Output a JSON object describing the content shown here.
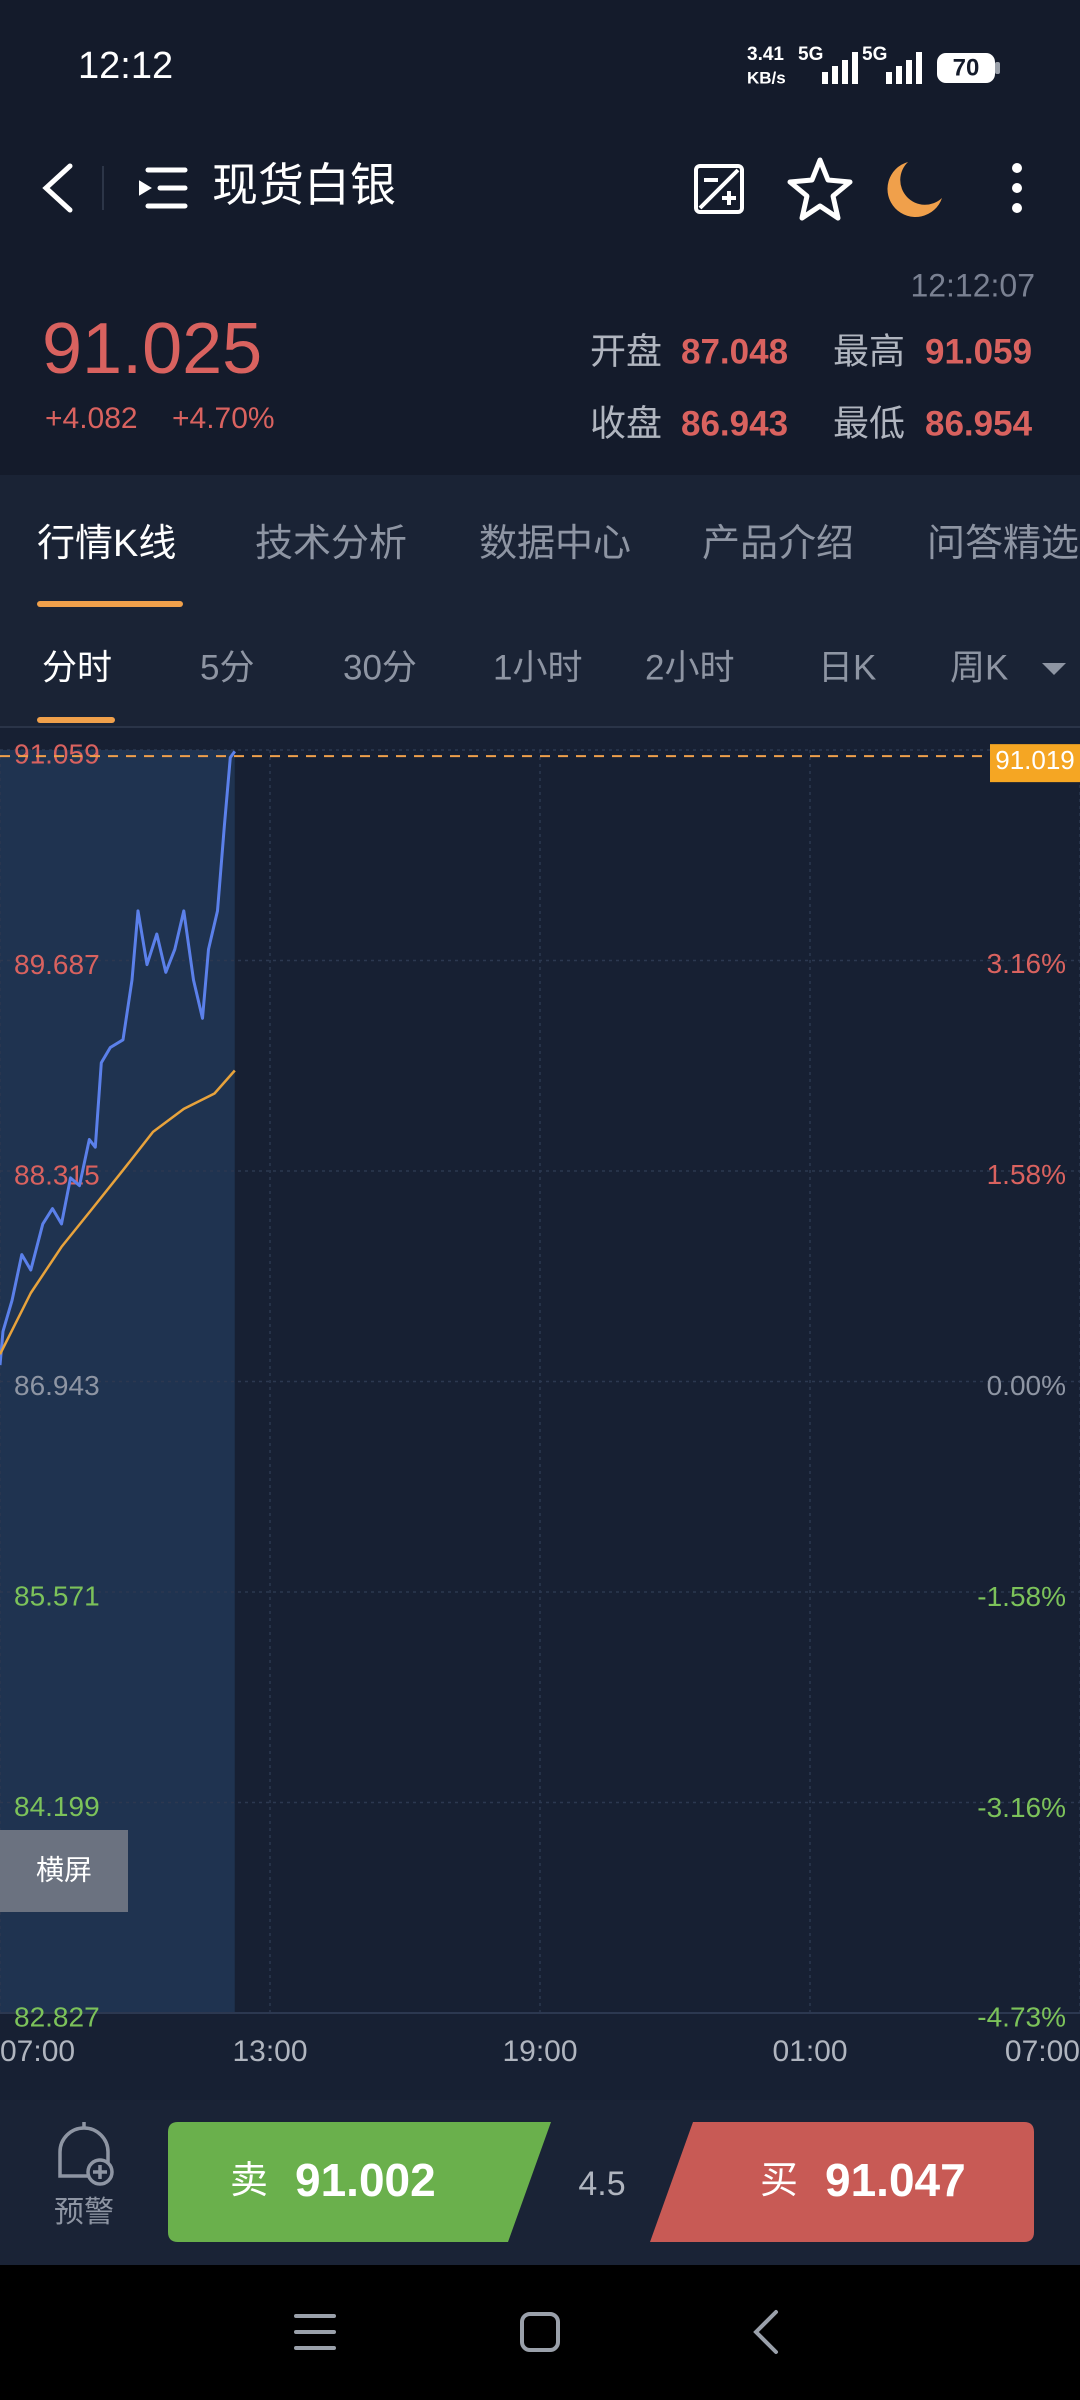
{
  "status_bar": {
    "time": "12:12",
    "speed": "3.41",
    "speed_unit": "KB/s",
    "network_1": "5G",
    "network_2": "5G",
    "battery": "70"
  },
  "header": {
    "title": "现货白银"
  },
  "quote": {
    "time": "12:12:07",
    "price": "91.025",
    "change": "+4.082",
    "change_pct": "+4.70%",
    "stats": [
      {
        "label": "开盘",
        "value": "87.048"
      },
      {
        "label": "最高",
        "value": "91.059"
      },
      {
        "label": "收盘",
        "value": "86.943"
      },
      {
        "label": "最低",
        "value": "86.954"
      }
    ]
  },
  "tabs": [
    "行情K线",
    "技术分析",
    "数据中心",
    "产品介绍",
    "问答精选"
  ],
  "periods": [
    "分时",
    "5分",
    "30分",
    "1小时",
    "2小时",
    "日K",
    "周K"
  ],
  "chart_data": {
    "type": "line",
    "series": [
      {
        "color": "#5b80ea",
        "x": [
          0,
          4,
          16,
          29,
          41,
          57,
          70,
          82,
          94,
          106,
          119,
          127,
          135,
          147,
          164,
          176,
          184,
          196,
          209,
          221,
          233,
          245,
          258,
          270,
          278,
          290,
          299,
          307,
          313
        ],
        "values": [
          87.05,
          87.27,
          87.47,
          87.77,
          87.67,
          87.97,
          88.07,
          87.97,
          88.27,
          88.22,
          88.52,
          88.47,
          89.02,
          89.12,
          89.17,
          89.56,
          90.01,
          89.66,
          89.86,
          89.61,
          89.76,
          90.01,
          89.56,
          89.31,
          89.76,
          90.01,
          90.56,
          91.01,
          91.05
        ]
      },
      {
        "color": "#e8a33c",
        "x": [
          0,
          41,
          82,
          123,
          164,
          204,
          245,
          286,
          313
        ],
        "values": [
          87.12,
          87.52,
          87.82,
          88.07,
          88.32,
          88.57,
          88.72,
          88.82,
          88.97
        ]
      }
    ],
    "xlim": [
      0,
      1440
    ],
    "xticks": [
      {
        "value": 0,
        "label": "07:00"
      },
      {
        "value": 360,
        "label": "13:00"
      },
      {
        "value": 720,
        "label": "19:00"
      },
      {
        "value": 1080,
        "label": "01:00"
      },
      {
        "value": 1440,
        "label": "07:00"
      }
    ],
    "ylim": [
      82.827,
      91.059
    ],
    "yticks": [
      91.059,
      89.687,
      88.315,
      86.943,
      85.571,
      84.199,
      82.827
    ],
    "y2lim": [
      -4.73,
      4.73
    ],
    "y2ticks": [
      {
        "value": 3.16,
        "label": "3.16%"
      },
      {
        "value": 1.58,
        "label": "1.58%"
      },
      {
        "value": 0,
        "label": "0.00%"
      },
      {
        "value": -1.58,
        "label": "-1.58%"
      },
      {
        "value": -3.16,
        "label": "-3.16%"
      },
      {
        "value": -4.73,
        "label": "-4.73%"
      }
    ],
    "price_marker": 91.019,
    "grid": true,
    "landscape_button": "横屏"
  },
  "bottom_bar": {
    "alert": "预警",
    "sell_label": "卖",
    "sell_price": "91.002",
    "spread": "4.5",
    "buy_label": "买",
    "buy_price": "91.047"
  }
}
